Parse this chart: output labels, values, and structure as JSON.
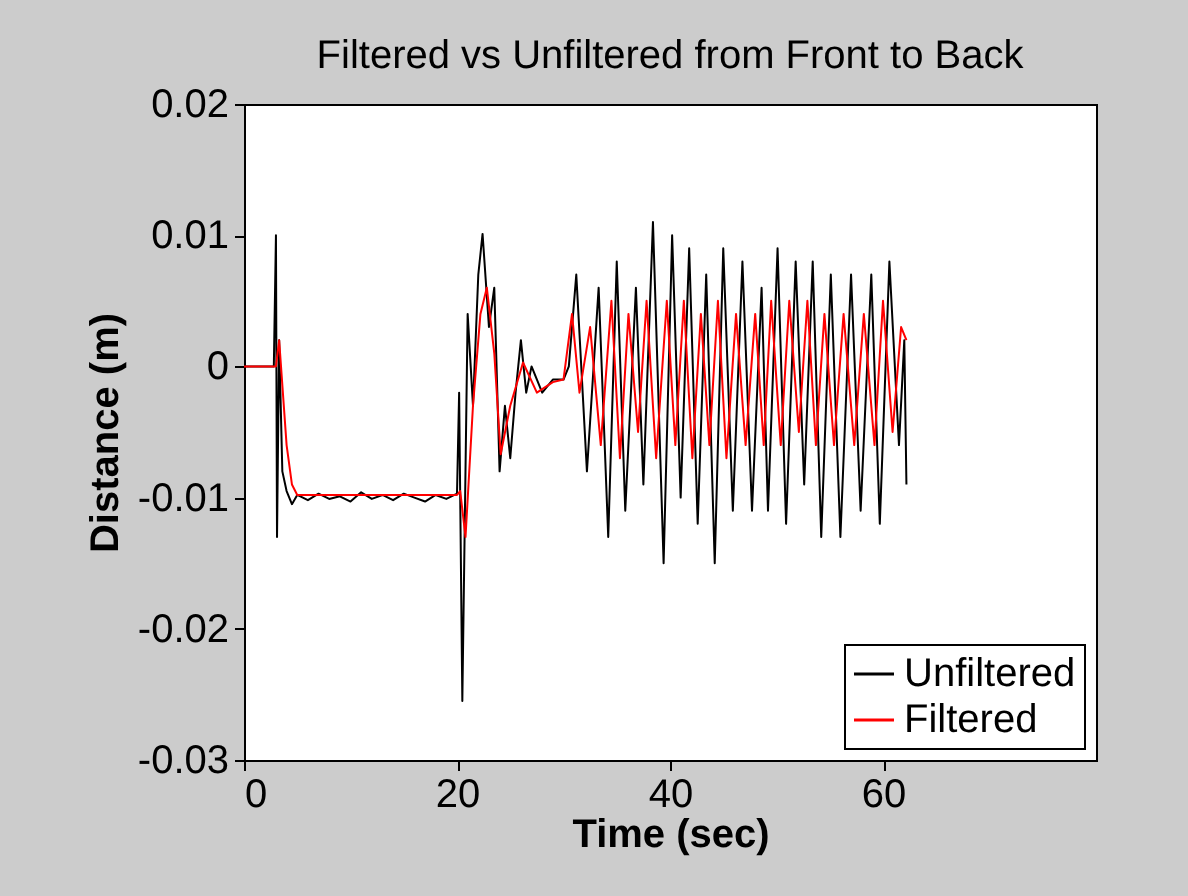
{
  "chart_data": {
    "type": "line",
    "title": "Filtered vs Unfiltered from Front to Back",
    "xlabel": "Time (sec)",
    "ylabel": "Distance (m)",
    "xlim": [
      0,
      80
    ],
    "xticks": [
      0,
      20,
      40,
      60
    ],
    "ylim": [
      -0.03,
      0.02
    ],
    "yticks": [
      -0.03,
      -0.02,
      -0.01,
      0,
      0.01,
      0.02
    ],
    "grid": false,
    "legend": "bottom right",
    "line_style": "solid",
    "marker": "none",
    "series": [
      {
        "name": "Unfiltered",
        "color": "#000000",
        "x": [
          0,
          2.8,
          3.0,
          3.1,
          3.3,
          3.6,
          4.0,
          4.5,
          5,
          6,
          7,
          8,
          9,
          10,
          11,
          12,
          13,
          14,
          15,
          16,
          17,
          18,
          19,
          20,
          20.2,
          20.5,
          21.0,
          21.5,
          22.0,
          22.4,
          23.0,
          23.5,
          24.0,
          24.5,
          25.0,
          25.5,
          26.0,
          26.5,
          27.0,
          28.0,
          29.0,
          30.0,
          30.5,
          31.2,
          32.2,
          33.3,
          34.2,
          35.0,
          35.8,
          36.8,
          37.5,
          38.4,
          39.4,
          40.2,
          41.0,
          41.8,
          42.6,
          43.4,
          44.2,
          45.0,
          45.9,
          46.8,
          47.7,
          48.6,
          49.2,
          50.1,
          50.9,
          51.8,
          52.6,
          53.4,
          54.2,
          55.1,
          56.0,
          57.0,
          57.9,
          58.9,
          59.7,
          60.6,
          61.5,
          62.0,
          62.2
        ],
        "values": [
          0,
          0,
          0.01,
          -0.013,
          0.002,
          -0.008,
          -0.0095,
          -0.0105,
          -0.0098,
          -0.0102,
          -0.0097,
          -0.0101,
          -0.0099,
          -0.0103,
          -0.0096,
          -0.0101,
          -0.0098,
          -0.0102,
          -0.0097,
          -0.01,
          -0.0103,
          -0.0098,
          -0.0101,
          -0.0097,
          -0.002,
          -0.0255,
          0.004,
          -0.003,
          0.007,
          0.0101,
          0.003,
          0.006,
          -0.008,
          -0.003,
          -0.007,
          -0.002,
          0.002,
          -0.002,
          0.0,
          -0.002,
          -0.001,
          -0.001,
          0.0,
          0.007,
          -0.008,
          0.006,
          -0.013,
          0.008,
          -0.011,
          0.006,
          -0.009,
          0.011,
          -0.015,
          0.01,
          -0.01,
          0.009,
          -0.012,
          0.007,
          -0.015,
          0.009,
          -0.011,
          0.008,
          -0.011,
          0.006,
          -0.011,
          0.009,
          -0.012,
          0.008,
          -0.009,
          0.008,
          -0.013,
          0.007,
          -0.013,
          0.007,
          -0.011,
          0.007,
          -0.012,
          0.008,
          -0.006,
          0.002,
          -0.009
        ]
      },
      {
        "name": "Filtered",
        "color": "#ff0000",
        "x": [
          0,
          3.0,
          3.3,
          4.0,
          4.5,
          5,
          10,
          15,
          20,
          20.3,
          20.8,
          21.5,
          22.2,
          22.8,
          23.5,
          24.1,
          25.0,
          26.2,
          27.5,
          29.0,
          30.0,
          30.8,
          31.5,
          32.5,
          33.5,
          34.5,
          35.3,
          36.1,
          37.0,
          37.8,
          38.7,
          39.7,
          40.5,
          41.3,
          42.1,
          42.9,
          43.7,
          44.5,
          45.3,
          46.2,
          47.1,
          48.0,
          48.8,
          49.5,
          50.4,
          51.2,
          52.1,
          52.9,
          53.7,
          54.5,
          55.4,
          56.3,
          57.3,
          58.2,
          59.2,
          60.0,
          60.9,
          61.7,
          62.2
        ],
        "values": [
          0,
          0,
          0.002,
          -0.006,
          -0.009,
          -0.0098,
          -0.0098,
          -0.0098,
          -0.0098,
          -0.0095,
          -0.013,
          -0.003,
          0.004,
          0.006,
          0.001,
          -0.0067,
          -0.003,
          0.0003,
          -0.002,
          -0.0012,
          -0.001,
          0.004,
          -0.002,
          0.003,
          -0.006,
          0.005,
          -0.007,
          0.004,
          -0.005,
          0.005,
          -0.007,
          0.005,
          -0.006,
          0.005,
          -0.007,
          0.004,
          -0.006,
          0.005,
          -0.007,
          0.004,
          -0.006,
          0.004,
          -0.006,
          0.005,
          -0.006,
          0.005,
          -0.005,
          0.005,
          -0.006,
          0.004,
          -0.006,
          0.004,
          -0.006,
          0.004,
          -0.006,
          0.005,
          -0.005,
          0.003,
          0.002
        ]
      }
    ]
  }
}
